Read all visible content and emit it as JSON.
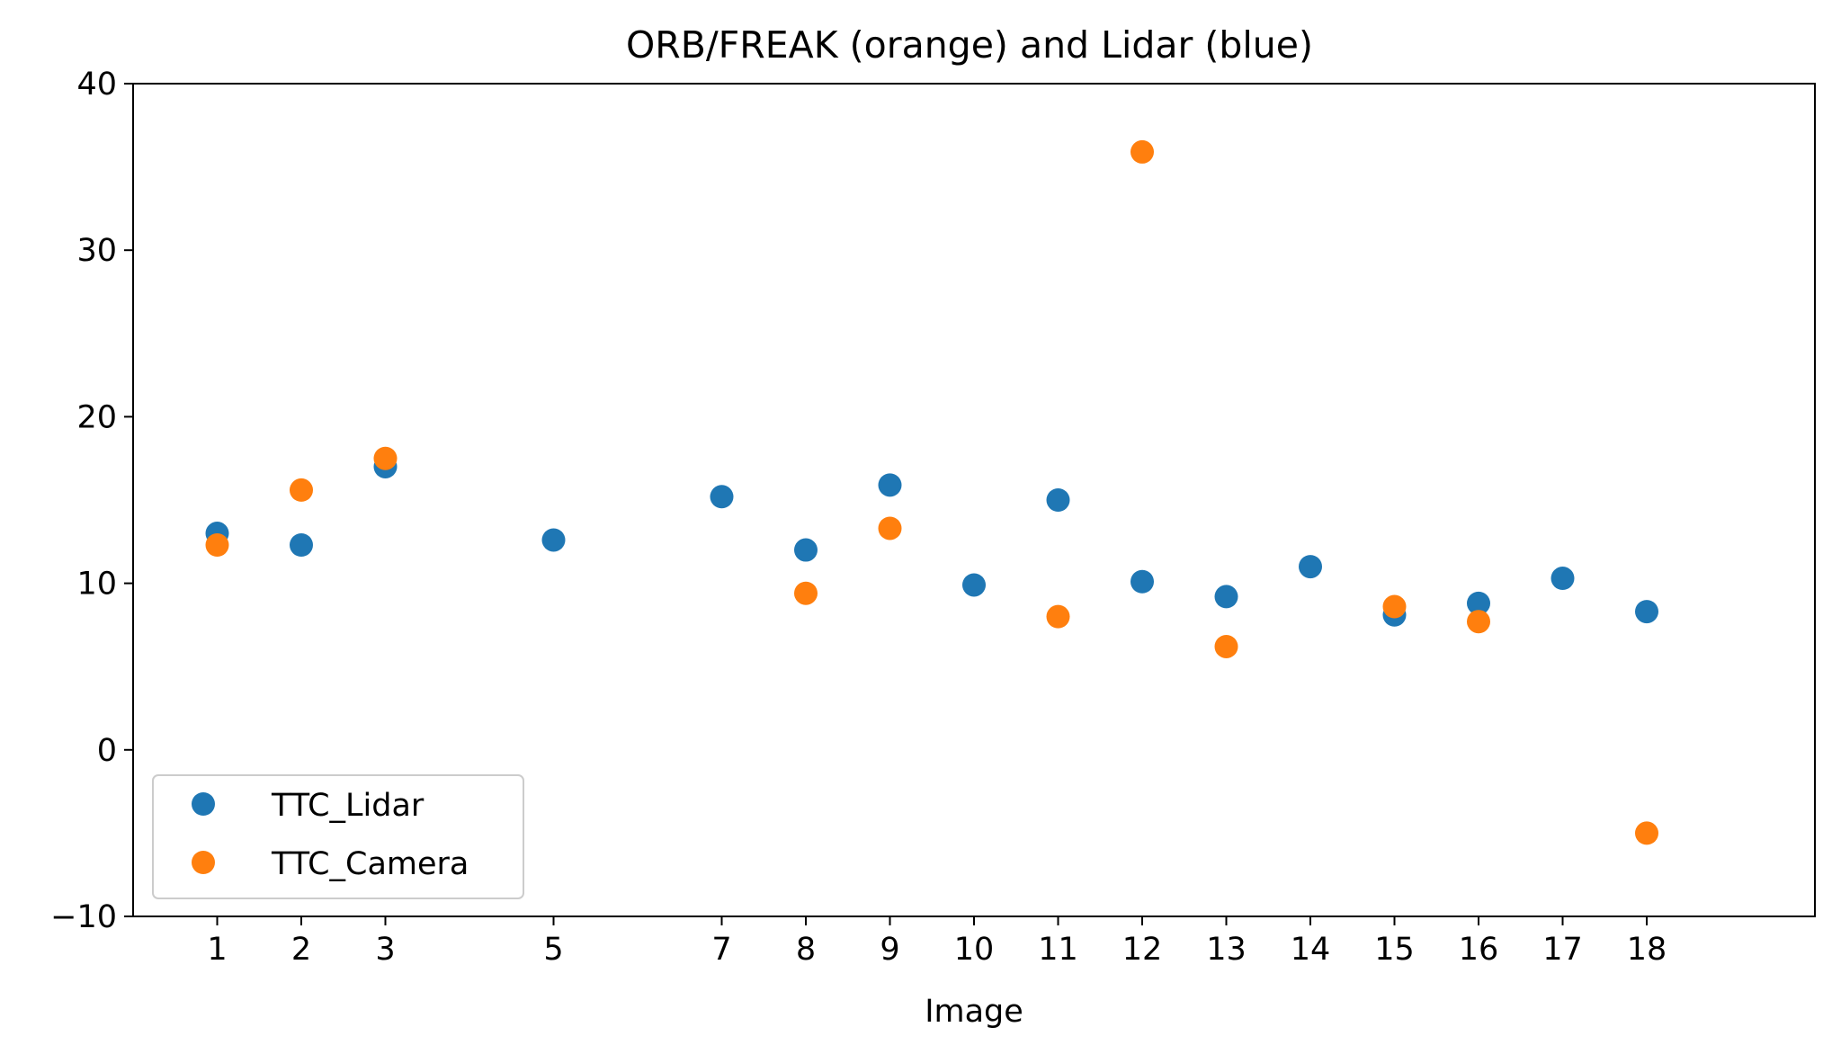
{
  "chart_data": {
    "type": "scatter",
    "title": "ORB/FREAK (orange) and Lidar (blue)",
    "xlabel": "Image",
    "ylabel": "",
    "xlim": [
      0,
      20
    ],
    "ylim": [
      -10,
      40
    ],
    "xticks": [
      1,
      2,
      3,
      5,
      7,
      8,
      9,
      10,
      11,
      12,
      13,
      14,
      15,
      16,
      17,
      18
    ],
    "yticks": [
      -10,
      0,
      10,
      20,
      30,
      40
    ],
    "grid": false,
    "legend_position": "lower-left",
    "series": [
      {
        "name": "TTC_Lidar",
        "color": "#1f77b4",
        "x": [
          1,
          2,
          3,
          5,
          7,
          8,
          9,
          10,
          11,
          12,
          13,
          14,
          15,
          16,
          17,
          18
        ],
        "y": [
          13.0,
          12.3,
          17.0,
          12.6,
          15.2,
          12.0,
          15.9,
          9.9,
          15.0,
          10.1,
          9.2,
          11.0,
          8.1,
          8.8,
          10.3,
          8.3
        ]
      },
      {
        "name": "TTC_Camera",
        "color": "#ff7f0e",
        "x": [
          1,
          2,
          3,
          8,
          9,
          11,
          12,
          13,
          15,
          16,
          18
        ],
        "y": [
          12.3,
          15.6,
          17.5,
          9.4,
          13.3,
          8.0,
          35.9,
          6.2,
          8.6,
          7.7,
          -5.0
        ]
      }
    ]
  }
}
